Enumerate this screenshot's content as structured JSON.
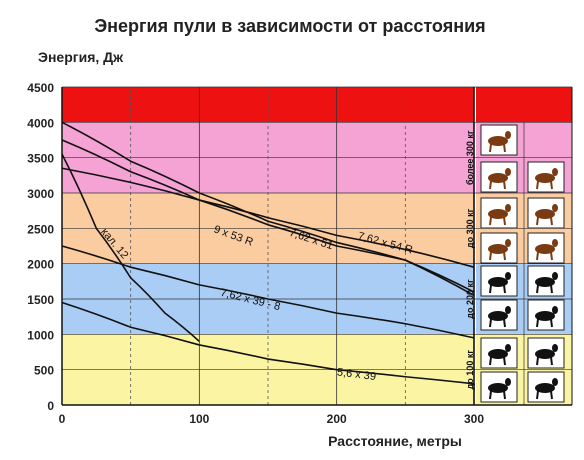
{
  "chart_data": {
    "type": "line",
    "title": "Энергия пули в зависимости от расстояния",
    "ylabel": "Энергия, Дж",
    "xlabel": "Расстояние, метры",
    "xlim": [
      0,
      300
    ],
    "ylim": [
      0,
      4500
    ],
    "x_ticks": [
      0,
      100,
      200,
      300
    ],
    "y_ticks": [
      0,
      500,
      1000,
      1500,
      2000,
      2500,
      3000,
      3500,
      4000,
      4500
    ],
    "grid": "dashed vertical lines at 50, 150, 250; horizontal lines at every 500",
    "bands": [
      {
        "from": 0,
        "to": 1000,
        "color": "#fbf5a3",
        "label": "до 100 кг"
      },
      {
        "from": 1000,
        "to": 2000,
        "color": "#aacdf5",
        "label": "до 200 кг"
      },
      {
        "from": 2000,
        "to": 3000,
        "color": "#fbcc9f",
        "label": "до 300 кг"
      },
      {
        "from": 3000,
        "to": 4000,
        "color": "#f5a3d5",
        "label": "более 300 кг"
      },
      {
        "from": 4000,
        "to": 4500,
        "color": "#ee1111",
        "label": ""
      }
    ],
    "series": [
      {
        "name": "кал. 12",
        "x": [
          0,
          25,
          50,
          75,
          100
        ],
        "y": [
          3550,
          2500,
          1800,
          1300,
          900
        ]
      },
      {
        "name": "9 x 53 R",
        "x": [
          0,
          50,
          100,
          150,
          200,
          250,
          300
        ],
        "y": [
          3750,
          3300,
          2900,
          2550,
          2250,
          2050,
          1550
        ]
      },
      {
        "name": "7,62 x 51",
        "x": [
          0,
          50,
          100,
          150,
          200,
          250,
          300
        ],
        "y": [
          4000,
          3450,
          3000,
          2600,
          2300,
          2050,
          1600
        ]
      },
      {
        "name": "7,62 x 54 R",
        "x": [
          0,
          50,
          100,
          150,
          200,
          250,
          300
        ],
        "y": [
          3350,
          3150,
          2900,
          2650,
          2400,
          2200,
          1950
        ]
      },
      {
        "name": "7,62 x 39 - 8",
        "x": [
          0,
          50,
          100,
          150,
          200,
          250,
          300
        ],
        "y": [
          2250,
          1950,
          1700,
          1500,
          1300,
          1150,
          950
        ]
      },
      {
        "name": "5,6 x 39",
        "x": [
          0,
          50,
          100,
          150,
          200,
          250,
          300
        ],
        "y": [
          1450,
          1100,
          850,
          650,
          500,
          400,
          300
        ]
      }
    ],
    "animals": [
      {
        "band": "более 300 кг",
        "icons": [
          "moose-icon",
          "moose-icon",
          "elk-icon"
        ]
      },
      {
        "band": "до 300 кг",
        "icons": [
          "deer-icon",
          "bear-icon",
          "bison-icon",
          "deer-icon"
        ]
      },
      {
        "band": "до 200 кг",
        "icons": [
          "wild-boar-icon",
          "bear-icon",
          "boar-icon",
          "deer-icon"
        ]
      },
      {
        "band": "до 100 кг",
        "icons": [
          "roe-deer-icon",
          "reindeer-icon",
          "capercaillie-icon",
          "wolf-icon"
        ]
      }
    ]
  }
}
